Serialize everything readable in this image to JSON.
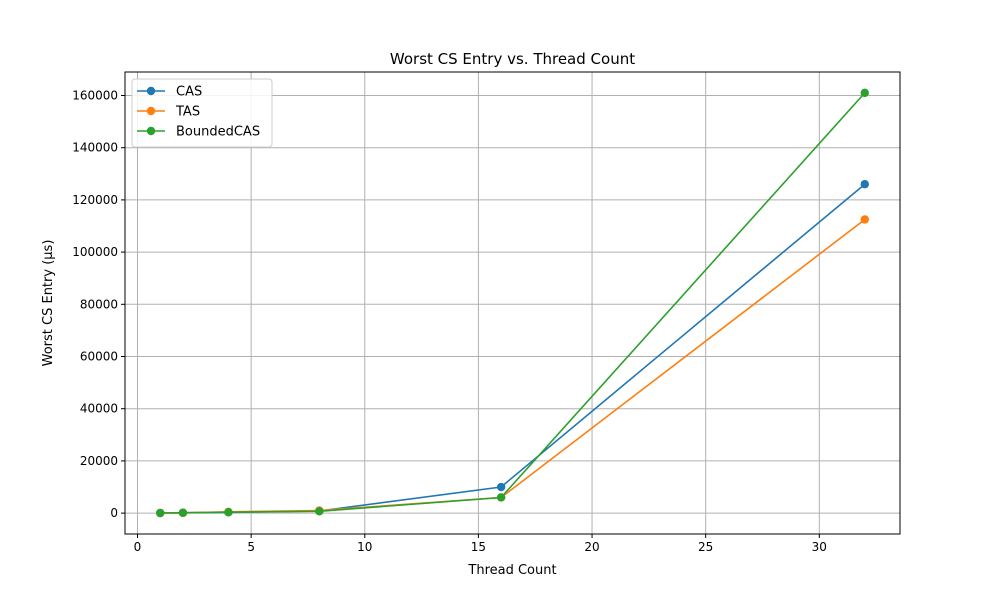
{
  "chart_data": {
    "type": "line",
    "title": "Worst CS Entry vs. Thread Count",
    "xlabel": "Thread Count",
    "ylabel": "Worst CS Entry (µs)",
    "xlim": [
      -0.55,
      33.55
    ],
    "ylim": [
      -8000,
      169000
    ],
    "x_ticks": [
      0,
      5,
      10,
      15,
      20,
      25,
      30
    ],
    "y_ticks": [
      0,
      20000,
      40000,
      60000,
      80000,
      100000,
      120000,
      140000,
      160000
    ],
    "grid": true,
    "legend_position": "top-left",
    "x": [
      1,
      2,
      4,
      8,
      16,
      32
    ],
    "series": [
      {
        "name": "CAS",
        "color": "#1f77b4",
        "values": [
          50,
          150,
          300,
          800,
          10000,
          126000
        ]
      },
      {
        "name": "TAS",
        "color": "#ff7f0e",
        "values": [
          30,
          100,
          500,
          1000,
          6000,
          112500
        ]
      },
      {
        "name": "BoundedCAS",
        "color": "#2ca02c",
        "values": [
          40,
          120,
          350,
          700,
          6000,
          161000
        ]
      }
    ]
  }
}
